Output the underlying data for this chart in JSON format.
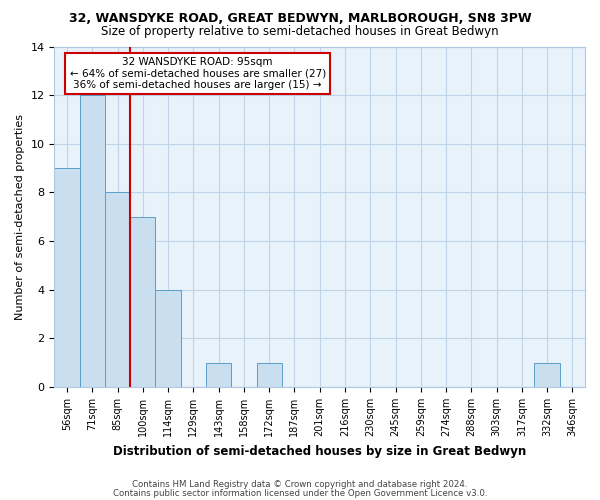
{
  "title": "32, WANSDYKE ROAD, GREAT BEDWYN, MARLBOROUGH, SN8 3PW",
  "subtitle": "Size of property relative to semi-detached houses in Great Bedwyn",
  "xlabel": "Distribution of semi-detached houses by size in Great Bedwyn",
  "ylabel": "Number of semi-detached properties",
  "categories": [
    "56sqm",
    "71sqm",
    "85sqm",
    "100sqm",
    "114sqm",
    "129sqm",
    "143sqm",
    "158sqm",
    "172sqm",
    "187sqm",
    "201sqm",
    "216sqm",
    "230sqm",
    "245sqm",
    "259sqm",
    "274sqm",
    "288sqm",
    "303sqm",
    "317sqm",
    "332sqm",
    "346sqm"
  ],
  "values": [
    9,
    12,
    8,
    7,
    4,
    0,
    1,
    0,
    1,
    0,
    0,
    0,
    0,
    0,
    0,
    0,
    0,
    0,
    0,
    1,
    0
  ],
  "bar_color": "#c9dff0",
  "bar_edge_color": "#5a9fc8",
  "grid_color": "#c0d4e8",
  "background_color": "#e8f2fb",
  "red_line_x": 2.5,
  "annotation_line1": "32 WANSDYKE ROAD: 95sqm",
  "annotation_line2": "← 64% of semi-detached houses are smaller (27)",
  "annotation_line3": "36% of semi-detached houses are larger (15) →",
  "annotation_box_color": "#ffffff",
  "annotation_box_edge_color": "#cc0000",
  "red_line_color": "#cc0000",
  "ylim": [
    0,
    14
  ],
  "yticks": [
    0,
    2,
    4,
    6,
    8,
    10,
    12,
    14
  ],
  "footer1": "Contains HM Land Registry data © Crown copyright and database right 2024.",
  "footer2": "Contains public sector information licensed under the Open Government Licence v3.0.",
  "title_fontsize": 9,
  "subtitle_fontsize": 8.5
}
